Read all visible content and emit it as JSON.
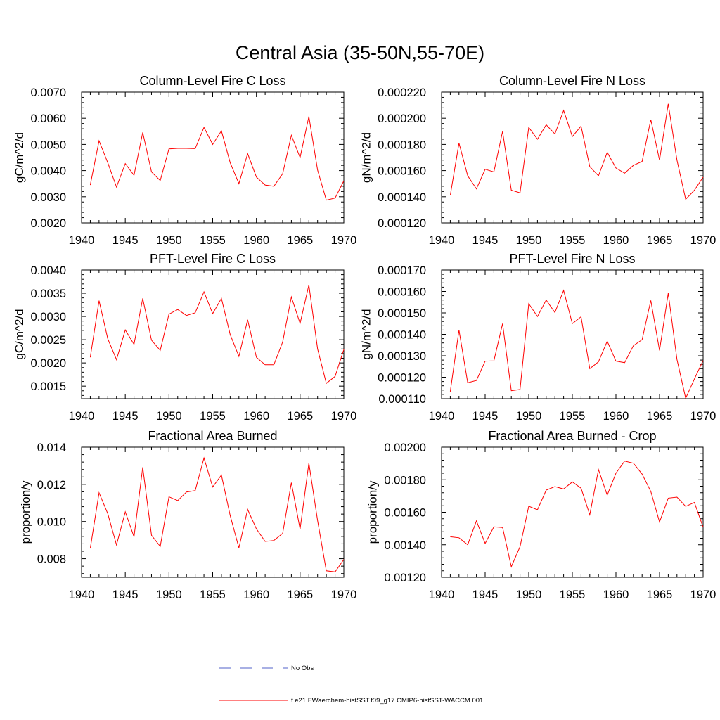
{
  "figure": {
    "title": "Central Asia (35-50N,55-70E)",
    "legend": [
      {
        "label": "No Obs",
        "color": "#5060c8",
        "style": "dashed"
      },
      {
        "label": "f.e21.FWaerchem-histSST.f09_g17.CMIP6-histSST-WACCM.001",
        "color": "#ff0000",
        "style": "solid"
      }
    ]
  },
  "chart_data": [
    {
      "type": "line",
      "title": "Column-Level Fire C Loss",
      "ylabel": "gC/m^2/d",
      "xlim": [
        1940,
        1970
      ],
      "ylim": [
        0.002,
        0.007
      ],
      "xticks": [
        "1940",
        "1945",
        "1950",
        "1955",
        "1960",
        "1965",
        "1970"
      ],
      "yticks": [
        "0.0020",
        "0.0030",
        "0.0040",
        "0.0050",
        "0.0060",
        "0.0070"
      ],
      "yticks_values": [
        0.002,
        0.003,
        0.004,
        0.005,
        0.006,
        0.007
      ],
      "series": [
        {
          "color": "#ff0000",
          "x": [
            1941,
            1942,
            1943,
            1944,
            1945,
            1946,
            1947,
            1948,
            1949,
            1950,
            1951,
            1952,
            1953,
            1954,
            1955,
            1956,
            1957,
            1958,
            1959,
            1960,
            1961,
            1962,
            1963,
            1964,
            1965,
            1966,
            1967,
            1968,
            1969,
            1970
          ],
          "y": [
            0.00345,
            0.00514,
            0.0043,
            0.00337,
            0.00427,
            0.00382,
            0.00546,
            0.00395,
            0.00362,
            0.00483,
            0.00485,
            0.00485,
            0.00484,
            0.00565,
            0.005,
            0.00552,
            0.0043,
            0.0035,
            0.00465,
            0.00375,
            0.00345,
            0.0034,
            0.00388,
            0.00535,
            0.0045,
            0.00607,
            0.00402,
            0.00287,
            0.00295,
            0.00361
          ]
        }
      ]
    },
    {
      "type": "line",
      "title": "Column-Level Fire N Loss",
      "ylabel": "gN/m^2/d",
      "xlim": [
        1940,
        1970
      ],
      "ylim": [
        0.00012,
        0.00022
      ],
      "xticks": [
        "1940",
        "1945",
        "1950",
        "1955",
        "1960",
        "1965",
        "1970"
      ],
      "yticks": [
        "0.000120",
        "0.000140",
        "0.000160",
        "0.000180",
        "0.000200",
        "0.000220"
      ],
      "yticks_values": [
        0.00012,
        0.00014,
        0.00016,
        0.00018,
        0.0002,
        0.00022
      ],
      "series": [
        {
          "color": "#ff0000",
          "x": [
            1941,
            1942,
            1943,
            1944,
            1945,
            1946,
            1947,
            1948,
            1949,
            1950,
            1951,
            1952,
            1953,
            1954,
            1955,
            1956,
            1957,
            1958,
            1959,
            1960,
            1961,
            1962,
            1963,
            1964,
            1965,
            1966,
            1967,
            1968,
            1969,
            1970
          ],
          "y": [
            0.000141,
            0.000181,
            0.000156,
            0.000146,
            0.000161,
            0.000159,
            0.00019,
            0.000145,
            0.000143,
            0.000193,
            0.000184,
            0.000195,
            0.000188,
            0.000206,
            0.000186,
            0.000194,
            0.000163,
            0.000156,
            0.000174,
            0.000162,
            0.000158,
            0.000164,
            0.000167,
            0.000199,
            0.000168,
            0.000211,
            0.000168,
            0.000138,
            0.000145,
            0.000155
          ]
        }
      ]
    },
    {
      "type": "line",
      "title": "PFT-Level Fire C Loss",
      "ylabel": "gC/m^2/d",
      "xlim": [
        1940,
        1970
      ],
      "ylim": [
        0.00123,
        0.004
      ],
      "xticks": [
        "1940",
        "1945",
        "1950",
        "1955",
        "1960",
        "1965",
        "1970"
      ],
      "yticks": [
        "0.0015",
        "0.0020",
        "0.0025",
        "0.0030",
        "0.0035",
        "0.0040"
      ],
      "yticks_values": [
        0.0015,
        0.002,
        0.0025,
        0.003,
        0.0035,
        0.004
      ],
      "series": [
        {
          "color": "#ff0000",
          "x": [
            1941,
            1942,
            1943,
            1944,
            1945,
            1946,
            1947,
            1948,
            1949,
            1950,
            1951,
            1952,
            1953,
            1954,
            1955,
            1956,
            1957,
            1958,
            1959,
            1960,
            1961,
            1962,
            1963,
            1964,
            1965,
            1966,
            1967,
            1968,
            1969,
            1970
          ],
          "y": [
            0.00212,
            0.00334,
            0.00252,
            0.00207,
            0.00271,
            0.0024,
            0.00339,
            0.00249,
            0.00227,
            0.00305,
            0.00315,
            0.00302,
            0.00308,
            0.00353,
            0.00306,
            0.00339,
            0.00261,
            0.00214,
            0.00293,
            0.00212,
            0.00196,
            0.00196,
            0.00245,
            0.00342,
            0.00285,
            0.00368,
            0.0023,
            0.00156,
            0.00171,
            0.00229
          ]
        }
      ]
    },
    {
      "type": "line",
      "title": "PFT-Level Fire N Loss",
      "ylabel": "gN/m^2/d",
      "xlim": [
        1940,
        1970
      ],
      "ylim": [
        0.00011,
        0.00017
      ],
      "xticks": [
        "1940",
        "1945",
        "1950",
        "1955",
        "1960",
        "1965",
        "1970"
      ],
      "yticks": [
        "0.000110",
        "0.000120",
        "0.000130",
        "0.000140",
        "0.000150",
        "0.000160",
        "0.000170"
      ],
      "yticks_values": [
        0.00011,
        0.00012,
        0.00013,
        0.00014,
        0.00015,
        0.00016,
        0.00017
      ],
      "series": [
        {
          "color": "#ff0000",
          "x": [
            1941,
            1942,
            1943,
            1944,
            1945,
            1946,
            1947,
            1948,
            1949,
            1950,
            1951,
            1952,
            1953,
            1954,
            1955,
            1956,
            1957,
            1958,
            1959,
            1960,
            1961,
            1962,
            1963,
            1964,
            1965,
            1966,
            1967,
            1968,
            1969,
            1970
          ],
          "y": [
            0.0001133,
            0.000142,
            0.0001174,
            0.0001185,
            0.0001275,
            0.0001276,
            0.000145,
            0.0001137,
            0.0001143,
            0.0001543,
            0.0001483,
            0.000156,
            0.0001502,
            0.0001605,
            0.000145,
            0.0001482,
            0.000124,
            0.0001272,
            0.0001368,
            0.0001275,
            0.0001268,
            0.0001347,
            0.0001375,
            0.0001558,
            0.0001325,
            0.0001592,
            0.0001283,
            0.0001102,
            0.0001192,
            0.0001278
          ]
        }
      ]
    },
    {
      "type": "line",
      "title": "Fractional Area Burned",
      "ylabel": "proportion/y",
      "xlim": [
        1940,
        1970
      ],
      "ylim": [
        0.007,
        0.014
      ],
      "xticks": [
        "1940",
        "1945",
        "1950",
        "1955",
        "1960",
        "1965",
        "1970"
      ],
      "yticks": [
        "0.008",
        "0.010",
        "0.012",
        "0.014"
      ],
      "yticks_values": [
        0.008,
        0.01,
        0.012,
        0.014
      ],
      "series": [
        {
          "color": "#ff0000",
          "x": [
            1941,
            1942,
            1943,
            1944,
            1945,
            1946,
            1947,
            1948,
            1949,
            1950,
            1951,
            1952,
            1953,
            1954,
            1955,
            1956,
            1957,
            1958,
            1959,
            1960,
            1961,
            1962,
            1963,
            1964,
            1965,
            1966,
            1967,
            1968,
            1969,
            1970
          ],
          "y": [
            0.00855,
            0.01155,
            0.01042,
            0.00874,
            0.01052,
            0.00917,
            0.01292,
            0.00926,
            0.00866,
            0.01133,
            0.01113,
            0.01159,
            0.01166,
            0.01342,
            0.01186,
            0.0125,
            0.01032,
            0.00858,
            0.01065,
            0.0096,
            0.00893,
            0.00898,
            0.00936,
            0.01209,
            0.00959,
            0.01315,
            0.01005,
            0.00735,
            0.00729,
            0.00796
          ]
        }
      ]
    },
    {
      "type": "line",
      "title": "Fractional Area Burned - Crop",
      "ylabel": "proportion/y",
      "xlim": [
        1940,
        1970
      ],
      "ylim": [
        0.0012,
        0.002
      ],
      "xticks": [
        "1940",
        "1945",
        "1950",
        "1955",
        "1960",
        "1965",
        "1970"
      ],
      "yticks": [
        "0.00120",
        "0.00140",
        "0.00160",
        "0.00180",
        "0.00200"
      ],
      "yticks_values": [
        0.0012,
        0.0014,
        0.0016,
        0.0018,
        0.002
      ],
      "series": [
        {
          "color": "#ff0000",
          "x": [
            1941,
            1942,
            1943,
            1944,
            1945,
            1946,
            1947,
            1948,
            1949,
            1950,
            1951,
            1952,
            1953,
            1954,
            1955,
            1956,
            1957,
            1958,
            1959,
            1960,
            1961,
            1962,
            1963,
            1964,
            1965,
            1966,
            1967,
            1968,
            1969,
            1970
          ],
          "y": [
            0.001449,
            0.001443,
            0.0014,
            0.001547,
            0.001408,
            0.00151,
            0.001506,
            0.001265,
            0.001388,
            0.001637,
            0.001615,
            0.001736,
            0.001758,
            0.001743,
            0.001787,
            0.001748,
            0.001585,
            0.001862,
            0.001705,
            0.00184,
            0.001915,
            0.001902,
            0.001835,
            0.001728,
            0.00154,
            0.001687,
            0.001693,
            0.001636,
            0.00166,
            0.001508
          ]
        }
      ]
    }
  ]
}
